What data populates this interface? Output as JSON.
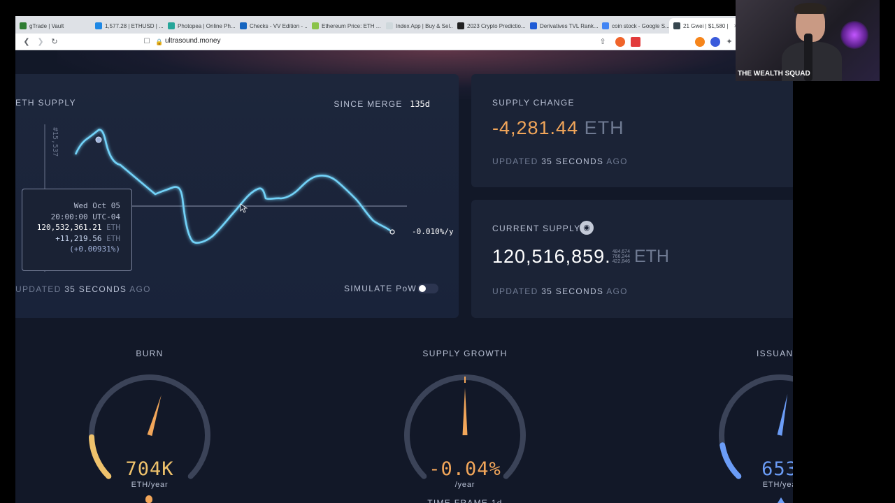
{
  "browser": {
    "tabs": [
      {
        "label": "gTrade | Vault",
        "color": "#2e7d32"
      },
      {
        "label": "1,577.28 | ETHUSD | ...",
        "color": "#1e88e5"
      },
      {
        "label": "Photopea | Online Ph...",
        "color": "#26a69a"
      },
      {
        "label": "Checks - VV Edition - ...",
        "color": "#1565c0"
      },
      {
        "label": "Ethereum Price: ETH ...",
        "color": "#8bc34a"
      },
      {
        "label": "Index App | Buy & Sel...",
        "color": "#cfd8dc"
      },
      {
        "label": "2023 Crypto Predictio...",
        "color": "#212121"
      },
      {
        "label": "Derivatives TVL Rank...",
        "color": "#1e5bd6"
      },
      {
        "label": "coin stock - Google S...",
        "color": "#4285f4"
      },
      {
        "label": "21 Gwei | $1,580 |",
        "color": "#37474f",
        "active": true
      }
    ],
    "url": "ultrasound.money",
    "tab_close": "×"
  },
  "supply": {
    "title": "ETH SUPPLY",
    "since_merge_label": "SINCE MERGE",
    "since_merge_value": "135d",
    "axis_label": "#15,537",
    "rate": "-0.010%/y",
    "updated_prefix": "UPDATED",
    "updated_value": "35 SECONDS",
    "updated_suffix": "AGO",
    "simulate_label": "SIMULATE PoW",
    "simulate_on": false,
    "tooltip": {
      "date": "Wed Oct 05",
      "time": "20:00:00 UTC-04",
      "supply": "120,532,361.21",
      "supply_unit": "ETH",
      "delta": "+11,219.56",
      "delta_unit": "ETH",
      "delta_pct": "(+0.00931%)"
    }
  },
  "supply_change": {
    "title": "SUPPLY CHANGE",
    "value": "-4,281.44",
    "unit": "ETH",
    "updated_prefix": "UPDATED",
    "updated_value": "35 SECONDS",
    "updated_suffix": "AGO"
  },
  "current_supply": {
    "title": "CURRENT SUPPLY",
    "value": "120,516,859.",
    "decimals": [
      "484,674",
      "766,244",
      "422,846"
    ],
    "unit": "ETH",
    "updated_prefix": "UPDATED",
    "updated_value": "35 SECONDS",
    "updated_suffix": "AGO",
    "icon": "nerd-face-icon"
  },
  "gauges": {
    "burn": {
      "title": "BURN",
      "value": "704K",
      "unit": "ETH/year",
      "color": "#efc26c",
      "level": 0.16
    },
    "supply_growth": {
      "title": "SUPPLY GROWTH",
      "value": "-0.04%",
      "unit": "/year",
      "color": "#f2a65a",
      "level": 0.5
    },
    "issuance": {
      "title": "ISSUANCE",
      "value": "653",
      "unit": "ETH/yea",
      "color": "#6b9cf6",
      "level": 0.13
    }
  },
  "partial_text": "TIME FRAME 1d",
  "webcam": {
    "label": "THE WEALTH SQUAD"
  },
  "colors": {
    "accent_orange": "#f2a65a",
    "chart_line": "#72d2f8",
    "background": "#121828"
  }
}
